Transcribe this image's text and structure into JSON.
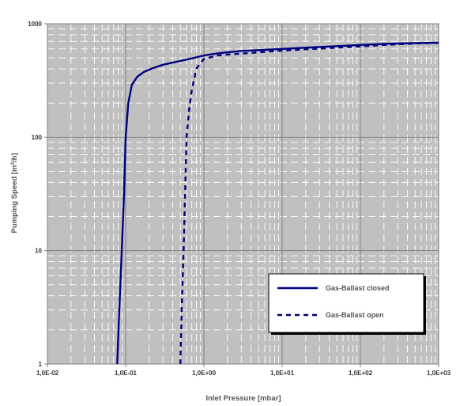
{
  "chart_data": {
    "type": "line",
    "xscale": "log",
    "yscale": "log",
    "xlim": [
      0.01,
      1000
    ],
    "ylim": [
      1,
      1000
    ],
    "xticks": [
      "1,0E-02",
      "1,0E-01",
      "1,0E+00",
      "1,0E+01",
      "1,0E+02",
      "1,0E+03"
    ],
    "yticks": [
      "1",
      "10",
      "100",
      "1000"
    ],
    "xlabel": "Inlet Pressure [mbar]",
    "ylabel_parts": [
      "Pumping Speed [m",
      "3",
      "/h]"
    ],
    "grid": true,
    "plot_background": "#c0c0c0",
    "line_color": "#000080",
    "legend_placement": "lower-right",
    "series": [
      {
        "name": "Gas-Ballast closed",
        "style": "solid",
        "x": [
          0.078,
          0.082,
          0.088,
          0.095,
          0.1,
          0.108,
          0.12,
          0.14,
          0.17,
          0.22,
          0.3,
          0.4,
          0.5,
          0.7,
          1.0,
          1.5,
          2,
          3,
          5,
          10,
          20,
          50,
          100,
          200,
          500,
          1000
        ],
        "y": [
          1,
          2.5,
          8,
          30,
          100,
          200,
          290,
          340,
          375,
          405,
          435,
          455,
          470,
          495,
          525,
          548,
          560,
          575,
          585,
          600,
          615,
          635,
          650,
          665,
          675,
          680
        ]
      },
      {
        "name": "Gas-Ballast open",
        "style": "dashed",
        "x": [
          0.5,
          0.52,
          0.55,
          0.58,
          0.6,
          0.65,
          0.7,
          0.8,
          0.9,
          1.0,
          1.5,
          2,
          3,
          5,
          10,
          20,
          50,
          100,
          200,
          500,
          1000
        ],
        "y": [
          1,
          3,
          10,
          40,
          100,
          180,
          260,
          400,
          450,
          490,
          525,
          535,
          545,
          560,
          580,
          595,
          615,
          632,
          650,
          670,
          680
        ]
      }
    ]
  }
}
